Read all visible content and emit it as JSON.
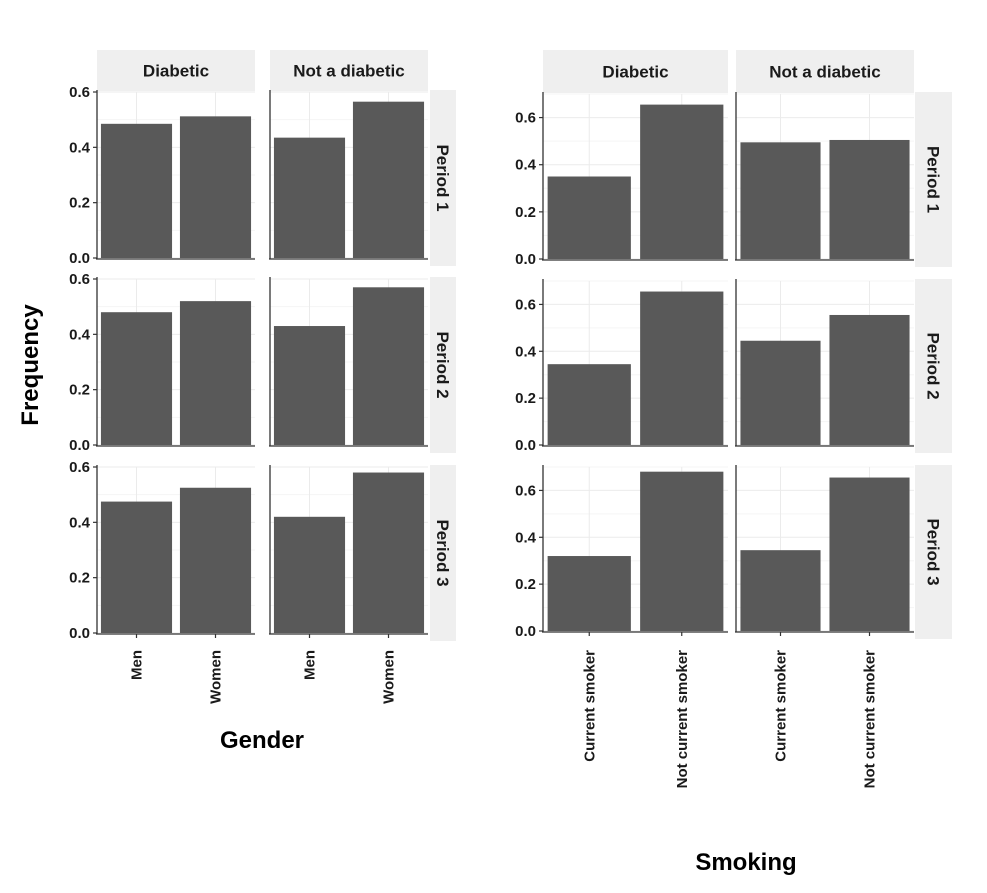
{
  "ylabel": "Frequency",
  "colors": {
    "bar": "#595959",
    "strip": "#efefef",
    "grid": "#ebebeb",
    "axis": "#333333"
  },
  "chart_data": [
    {
      "type": "bar",
      "facet_columns": [
        "Diabetic",
        "Not a diabetic"
      ],
      "facet_rows": [
        "Period 1",
        "Period 2",
        "Period 3"
      ],
      "categories": [
        "Men",
        "Women"
      ],
      "xlabel": "Gender",
      "ylabel": "Frequency",
      "ylim": [
        0,
        0.6
      ],
      "yticks": [
        "0.0",
        "0.2",
        "0.4",
        "0.6"
      ],
      "panels": [
        {
          "row": "Period 1",
          "col": "Diabetic",
          "values": [
            0.485,
            0.512
          ]
        },
        {
          "row": "Period 1",
          "col": "Not a diabetic",
          "values": [
            0.435,
            0.565
          ]
        },
        {
          "row": "Period 2",
          "col": "Diabetic",
          "values": [
            0.48,
            0.52
          ]
        },
        {
          "row": "Period 2",
          "col": "Not a diabetic",
          "values": [
            0.43,
            0.57
          ]
        },
        {
          "row": "Period 3",
          "col": "Diabetic",
          "values": [
            0.475,
            0.525
          ]
        },
        {
          "row": "Period 3",
          "col": "Not a diabetic",
          "values": [
            0.42,
            0.58
          ]
        }
      ]
    },
    {
      "type": "bar",
      "facet_columns": [
        "Diabetic",
        "Not a diabetic"
      ],
      "facet_rows": [
        "Period 1",
        "Period 2",
        "Period 3"
      ],
      "categories": [
        "Current smoker",
        "Not current smoker"
      ],
      "xlabel": "Smoking",
      "ylabel": "",
      "ylim": [
        0,
        0.7
      ],
      "yticks": [
        "0.0",
        "0.2",
        "0.4",
        "0.6"
      ],
      "panels": [
        {
          "row": "Period 1",
          "col": "Diabetic",
          "values": [
            0.35,
            0.655
          ]
        },
        {
          "row": "Period 1",
          "col": "Not a diabetic",
          "values": [
            0.495,
            0.505
          ]
        },
        {
          "row": "Period 2",
          "col": "Diabetic",
          "values": [
            0.345,
            0.655
          ]
        },
        {
          "row": "Period 2",
          "col": "Not a diabetic",
          "values": [
            0.445,
            0.555
          ]
        },
        {
          "row": "Period 3",
          "col": "Diabetic",
          "values": [
            0.32,
            0.68
          ]
        },
        {
          "row": "Period 3",
          "col": "Not a diabetic",
          "values": [
            0.345,
            0.655
          ]
        }
      ]
    }
  ]
}
